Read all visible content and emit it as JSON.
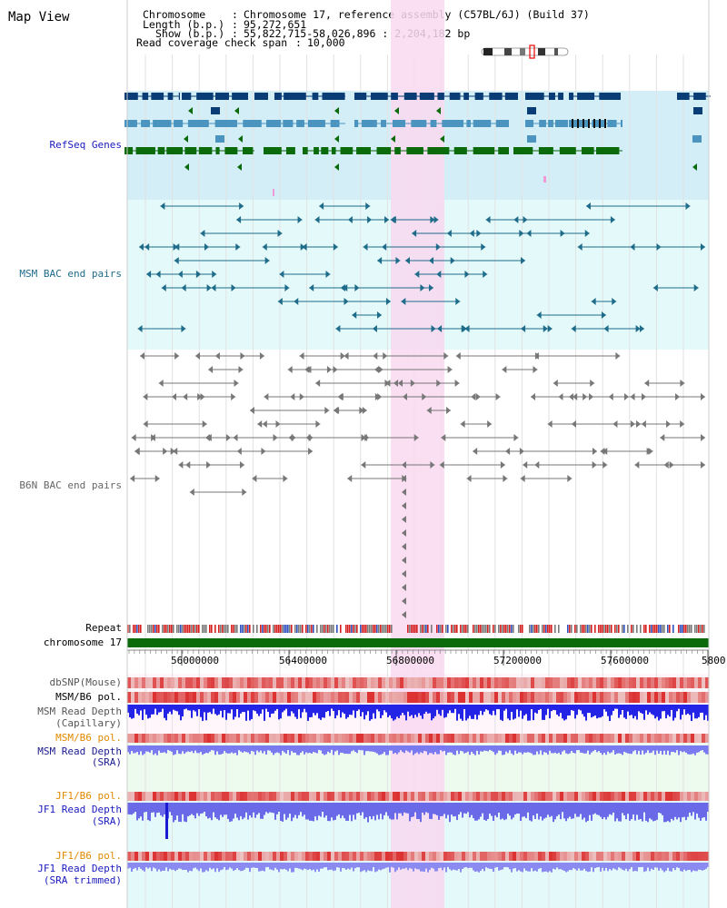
{
  "view_title": "Map View",
  "info": {
    "chromosome_key": "Chromosome",
    "chromosome_val": "Chromosome 17, reference assembly (C57BL/6J) (Build 37)",
    "length_key": "Length (b.p.)",
    "length_val": "95,272,651",
    "show_key": "Show (b.p.)",
    "show_val": "55,822,715-58,026,896 : 2,204,182 bp",
    "coverage_key": "Read coverage check span",
    "coverage_val": "10,000"
  },
  "colors": {
    "refseq_bg": "#d3eef7",
    "bac_bg": "#e4fafa",
    "highlight": "#f9d8f0",
    "refseq_dark": "#0a3d75",
    "refseq_mid": "#4a94bf",
    "refseq_green": "#0b6b0b",
    "msm_bac": "#1e6b8a",
    "b6n_bac": "#777777",
    "chromosome_bar": "#0b6b0b",
    "read_depth_blue": "#2424e6",
    "read_depth_light": "#7a7af0",
    "snp_pink": "#f28b8b"
  },
  "tracks": {
    "refseq": "RefSeq Genes",
    "msm_bac": "MSM BAC end pairs",
    "b6n_bac": "B6N BAC end pairs",
    "repeat": "Repeat",
    "chromosome": "chromosome 17",
    "dbsnp": "dbSNP(Mouse)",
    "msm_b6_pol_1": "MSM/B6 pol.",
    "msm_depth_cap_1": "MSM Read Depth",
    "msm_depth_cap_2": "(Capillary)",
    "msm_b6_pol_2": "MSM/B6 pol.",
    "msm_depth_sra_1": "MSM Read Depth",
    "msm_depth_sra_2": "(SRA)",
    "jf1_b6_pol_1": "JF1/B6 pol.",
    "jf1_depth_sra_1": "JF1 Read Depth",
    "jf1_depth_sra_2": "(SRA)",
    "jf1_b6_pol_2": "JF1/B6 pol.",
    "jf1_depth_trim_1": "JF1 Read Depth",
    "jf1_depth_trim_2": "(SRA trimmed)"
  },
  "axis": {
    "ticks": [
      "56000000",
      "56400000",
      "56800000",
      "57200000",
      "57600000",
      "5800"
    ]
  }
}
